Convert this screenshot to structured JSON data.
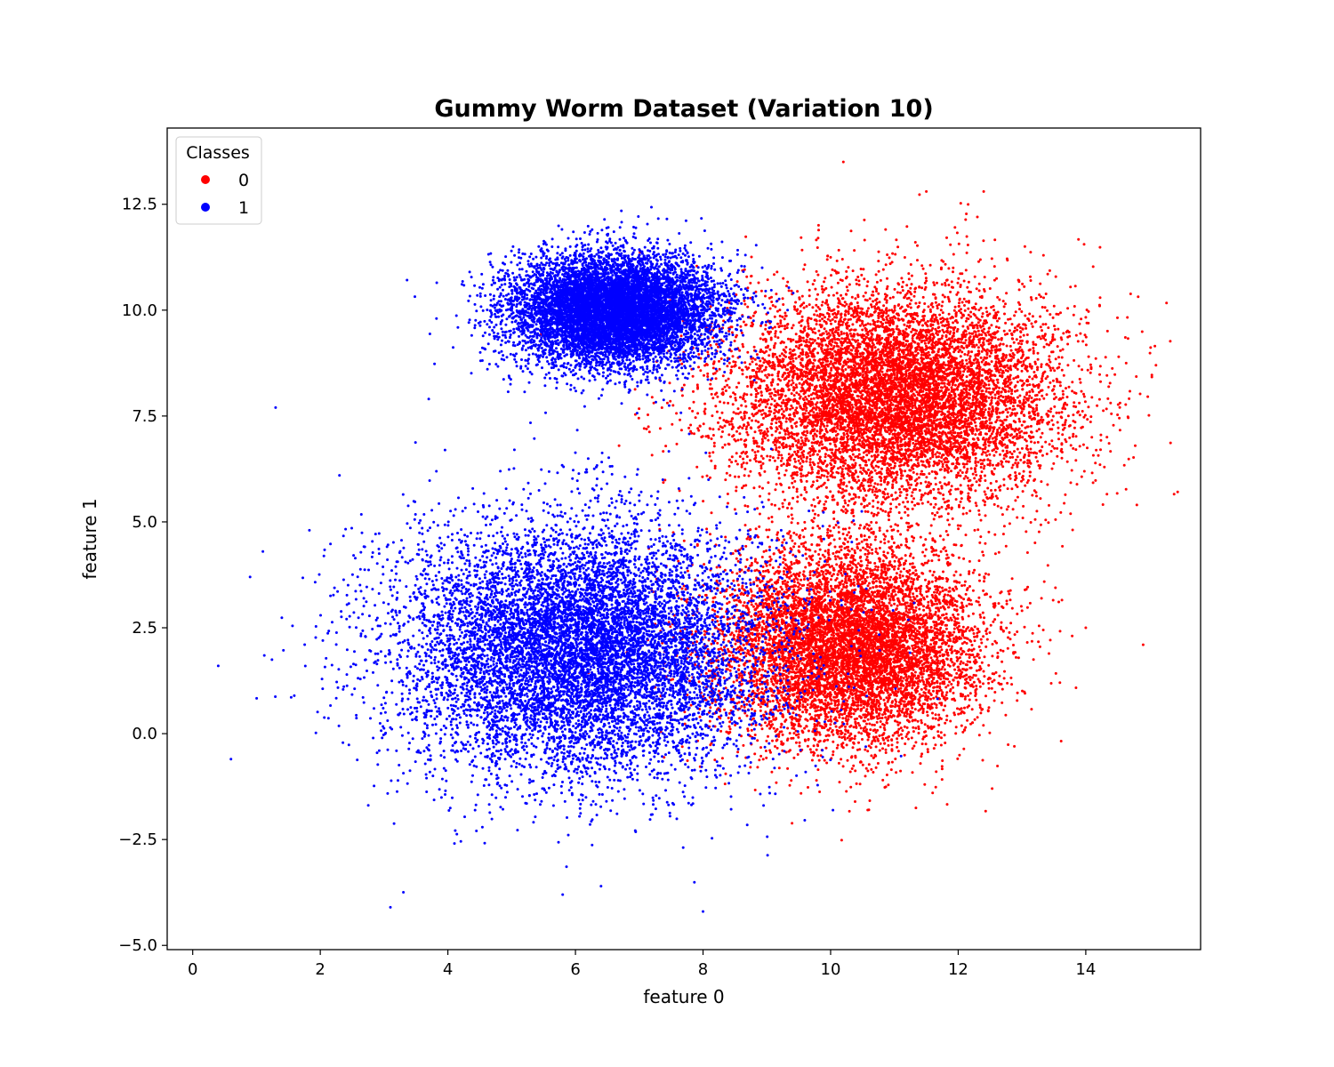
{
  "chart_data": {
    "type": "scatter",
    "title": "Gummy Worm Dataset (Variation 10)",
    "xlabel": "feature 0",
    "ylabel": "feature 1",
    "xlim": [
      -0.4,
      15.8
    ],
    "ylim": [
      -5.1,
      14.3
    ],
    "x_ticks": [
      0,
      2,
      4,
      6,
      8,
      10,
      12,
      14
    ],
    "x_tick_labels": [
      "0",
      "2",
      "4",
      "6",
      "8",
      "10",
      "12",
      "14"
    ],
    "y_ticks": [
      -5.0,
      -2.5,
      0.0,
      2.5,
      5.0,
      7.5,
      10.0,
      12.5
    ],
    "y_tick_labels": [
      "−5.0",
      "−2.5",
      "0.0",
      "2.5",
      "5.0",
      "7.5",
      "10.0",
      "12.5"
    ],
    "grid": false,
    "legend": {
      "title": "Classes",
      "position": "top-left"
    },
    "series": [
      {
        "name": "0",
        "color": "#ff0000",
        "clusters": [
          {
            "center": [
              11.0,
              8.0
            ],
            "std": [
              1.3,
              1.25
            ],
            "count": 9000
          },
          {
            "center": [
              10.3,
              2.1
            ],
            "std": [
              1.05,
              1.2
            ],
            "count": 8000
          }
        ],
        "points": [
          [
            10.2,
            13.5
          ],
          [
            11.5,
            12.8
          ],
          [
            12.4,
            12.8
          ],
          [
            12.3,
            12.2
          ],
          [
            15.1,
            8.7
          ],
          [
            14.9,
            2.1
          ],
          [
            10.6,
            -1.8
          ],
          [
            11.6,
            -1.4
          ],
          [
            14.0,
            2.5
          ],
          [
            14.8,
            5.4
          ]
        ]
      },
      {
        "name": "1",
        "color": "#0000ff",
        "clusters": [
          {
            "center": [
              6.6,
              10.0
            ],
            "std": [
              0.8,
              0.65
            ],
            "count": 9000
          },
          {
            "center": [
              6.1,
              2.0
            ],
            "std": [
              1.45,
              1.5
            ],
            "count": 10000
          }
        ],
        "points": [
          [
            1.3,
            7.7
          ],
          [
            0.4,
            1.6
          ],
          [
            0.6,
            -0.6
          ],
          [
            3.1,
            -4.1
          ],
          [
            8.0,
            -4.2
          ],
          [
            5.8,
            -3.8
          ],
          [
            6.4,
            -3.6
          ],
          [
            1.1,
            4.3
          ],
          [
            0.9,
            3.7
          ],
          [
            2.3,
            6.1
          ],
          [
            3.7,
            7.9
          ]
        ]
      }
    ]
  }
}
